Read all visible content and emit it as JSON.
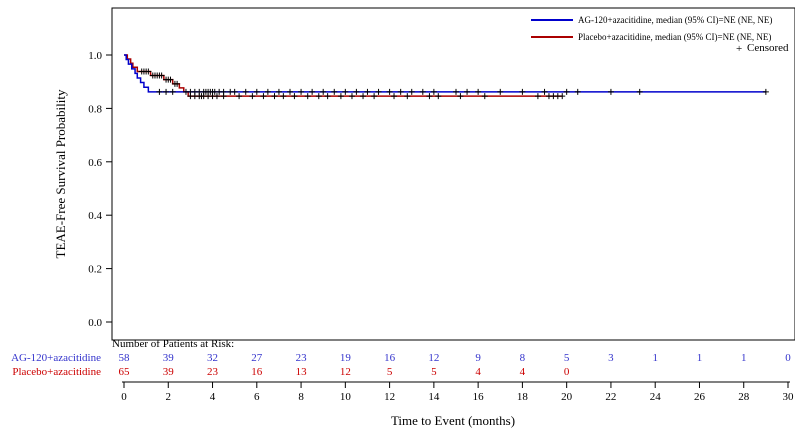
{
  "chart_data": {
    "type": "line",
    "subtype": "kaplan-meier",
    "xlabel": "Time to Event (months)",
    "ylabel": "TEAE-Free Survival Probability",
    "xlim": [
      0,
      30
    ],
    "ylim": [
      0,
      1.0
    ],
    "x_ticks": [
      0,
      2,
      4,
      6,
      8,
      10,
      12,
      14,
      16,
      18,
      20,
      22,
      24,
      26,
      28,
      30
    ],
    "y_ticks": [
      0.0,
      0.2,
      0.4,
      0.6,
      0.8,
      1.0
    ],
    "grid": false,
    "legend_position": "top-right",
    "censored_label": "Censored",
    "censored_marker": "+",
    "series": [
      {
        "name": "AG-120+azacitidine, median (95% CI)=NE (NE, NE)",
        "color": "#0000cc",
        "steps": [
          [
            0,
            1.0
          ],
          [
            0.1,
            0.983
          ],
          [
            0.2,
            0.966
          ],
          [
            0.35,
            0.948
          ],
          [
            0.5,
            0.931
          ],
          [
            0.6,
            0.914
          ],
          [
            0.75,
            0.897
          ],
          [
            0.9,
            0.879
          ],
          [
            1.1,
            0.862
          ],
          [
            29.0,
            0.862
          ]
        ],
        "censored_x": [
          1.6,
          1.9,
          2.2,
          2.8,
          3.0,
          3.2,
          3.4,
          3.6,
          3.7,
          3.8,
          3.9,
          4.0,
          4.1,
          4.3,
          4.5,
          4.8,
          5.0,
          5.5,
          6.0,
          6.5,
          7.0,
          7.5,
          8.0,
          8.5,
          9.0,
          9.5,
          10.0,
          10.5,
          11.0,
          11.5,
          12.0,
          12.5,
          13.0,
          13.5,
          14.0,
          15.0,
          15.5,
          16.0,
          17.0,
          18.0,
          19.0,
          20.0,
          20.5,
          22.0,
          23.3,
          29.0
        ]
      },
      {
        "name": "Placebo+azacitidine, median (95% CI)=NE (NE, NE)",
        "color": "#aa0000",
        "steps": [
          [
            0,
            1.0
          ],
          [
            0.15,
            0.985
          ],
          [
            0.3,
            0.969
          ],
          [
            0.4,
            0.954
          ],
          [
            0.6,
            0.938
          ],
          [
            1.2,
            0.923
          ],
          [
            1.8,
            0.908
          ],
          [
            2.2,
            0.892
          ],
          [
            2.5,
            0.877
          ],
          [
            2.7,
            0.862
          ],
          [
            2.9,
            0.846
          ],
          [
            19.8,
            0.846
          ]
        ],
        "censored_x": [
          0.8,
          0.9,
          1.0,
          1.1,
          1.3,
          1.4,
          1.5,
          1.6,
          1.7,
          1.9,
          2.0,
          2.1,
          2.3,
          2.4,
          3.0,
          3.2,
          3.4,
          3.5,
          3.6,
          3.8,
          4.0,
          4.2,
          4.5,
          5.2,
          5.8,
          6.3,
          6.8,
          7.2,
          7.7,
          8.3,
          8.8,
          9.2,
          9.8,
          10.3,
          10.8,
          11.3,
          12.2,
          12.8,
          13.8,
          14.2,
          15.2,
          16.3,
          18.7,
          19.2,
          19.4,
          19.6,
          19.8
        ]
      }
    ],
    "risk_table": {
      "title": "Number of Patients at Risk:",
      "times": [
        0,
        2,
        4,
        6,
        8,
        10,
        12,
        14,
        16,
        18,
        20,
        22,
        24,
        26,
        28,
        30
      ],
      "rows": [
        {
          "label": "AG-120+azacitidine",
          "color": "#3333cc",
          "values": [
            "58",
            "39",
            "32",
            "27",
            "23",
            "19",
            "16",
            "12",
            "9",
            "8",
            "5",
            "3",
            "1",
            "1",
            "1",
            "0"
          ]
        },
        {
          "label": "Placebo+azacitidine",
          "color": "#cc0000",
          "values": [
            "65",
            "39",
            "23",
            "16",
            "13",
            "12",
            "5",
            "5",
            "4",
            "4",
            "0",
            "",
            "",
            "",
            "",
            ""
          ]
        }
      ]
    }
  }
}
